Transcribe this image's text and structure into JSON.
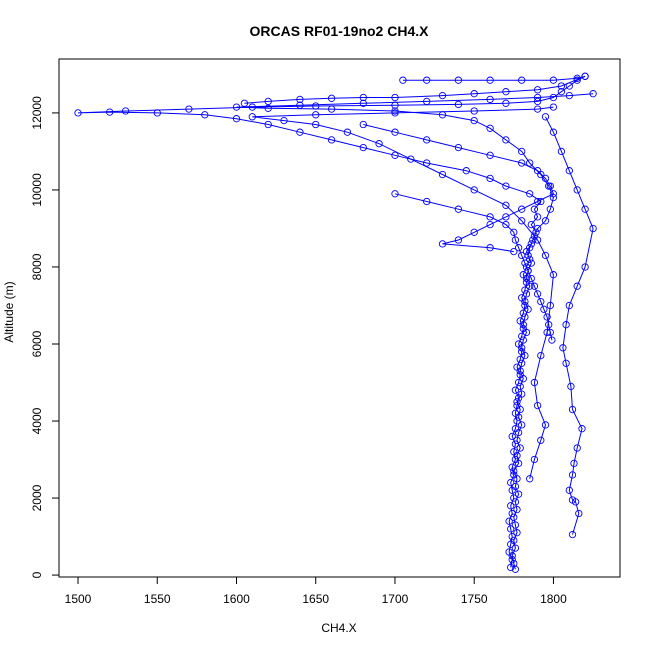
{
  "chart_data": {
    "type": "line",
    "title": "ORCAS RF01-19no2 CH4.X",
    "xlabel": "CH4.X",
    "ylabel": "Altitude (m)",
    "xlim": [
      1488,
      1842
    ],
    "ylim": [
      -50,
      13400
    ],
    "xticks": [
      1500,
      1550,
      1600,
      1650,
      1700,
      1750,
      1800
    ],
    "yticks": [
      0,
      2000,
      4000,
      6000,
      8000,
      10000,
      12000
    ],
    "grid": false,
    "legend": "none",
    "colors": {
      "series": "#0000ff",
      "axis": "#000000"
    },
    "markers": "open-circle",
    "series": [
      {
        "label": "",
        "points": [
          [
            1776,
            150
          ],
          [
            1775,
            300
          ],
          [
            1774,
            500
          ],
          [
            1776,
            700
          ],
          [
            1775,
            900
          ],
          [
            1777,
            1100
          ],
          [
            1776,
            1300
          ],
          [
            1775,
            1500
          ],
          [
            1777,
            1700
          ],
          [
            1776,
            1900
          ],
          [
            1778,
            2100
          ],
          [
            1776,
            2300
          ],
          [
            1777,
            2500
          ],
          [
            1775,
            2700
          ],
          [
            1778,
            2900
          ],
          [
            1777,
            3100
          ],
          [
            1779,
            3300
          ],
          [
            1777,
            3500
          ],
          [
            1778,
            3700
          ],
          [
            1780,
            3900
          ],
          [
            1778,
            4100
          ],
          [
            1779,
            4300
          ],
          [
            1777,
            4500
          ],
          [
            1780,
            4700
          ],
          [
            1779,
            4900
          ],
          [
            1781,
            5100
          ],
          [
            1779,
            5300
          ],
          [
            1780,
            5500
          ],
          [
            1782,
            5700
          ],
          [
            1780,
            5900
          ],
          [
            1781,
            6100
          ],
          [
            1783,
            6300
          ],
          [
            1781,
            6500
          ],
          [
            1782,
            6700
          ],
          [
            1784,
            6900
          ],
          [
            1782,
            7100
          ],
          [
            1783,
            7300
          ],
          [
            1785,
            7500
          ],
          [
            1783,
            7700
          ],
          [
            1784,
            7900
          ],
          [
            1786,
            8100
          ],
          [
            1784,
            8300
          ],
          [
            1785,
            8500
          ],
          [
            1787,
            8700
          ],
          [
            1789,
            8900
          ],
          [
            1786,
            9100
          ],
          [
            1790,
            9300
          ],
          [
            1788,
            9500
          ],
          [
            1792,
            9700
          ],
          [
            1785,
            9900
          ],
          [
            1770,
            10100
          ],
          [
            1760,
            10300
          ],
          [
            1745,
            10500
          ],
          [
            1720,
            10700
          ],
          [
            1700,
            10900
          ],
          [
            1680,
            11100
          ],
          [
            1660,
            11300
          ],
          [
            1640,
            11500
          ],
          [
            1620,
            11700
          ],
          [
            1600,
            11850
          ],
          [
            1580,
            11950
          ],
          [
            1550,
            12000
          ],
          [
            1520,
            12020
          ],
          [
            1500,
            12000
          ],
          [
            1530,
            12050
          ],
          [
            1570,
            12100
          ],
          [
            1610,
            12150
          ],
          [
            1650,
            12180
          ],
          [
            1700,
            12200
          ],
          [
            1740,
            12220
          ],
          [
            1770,
            12250
          ],
          [
            1790,
            12300
          ],
          [
            1800,
            12400
          ],
          [
            1805,
            12550
          ],
          [
            1810,
            12700
          ],
          [
            1815,
            12850
          ],
          [
            1820,
            12950
          ]
        ]
      },
      {
        "label": "",
        "points": [
          [
            1773,
            200
          ],
          [
            1774,
            400
          ],
          [
            1772,
            600
          ],
          [
            1773,
            800
          ],
          [
            1774,
            1000
          ],
          [
            1773,
            1200
          ],
          [
            1772,
            1400
          ],
          [
            1774,
            1600
          ],
          [
            1773,
            1800
          ],
          [
            1775,
            2000
          ],
          [
            1774,
            2200
          ],
          [
            1773,
            2400
          ],
          [
            1775,
            2600
          ],
          [
            1774,
            2800
          ],
          [
            1776,
            3000
          ],
          [
            1775,
            3200
          ],
          [
            1776,
            3400
          ],
          [
            1774,
            3600
          ],
          [
            1776,
            3800
          ],
          [
            1777,
            4000
          ],
          [
            1776,
            4200
          ],
          [
            1777,
            4400
          ],
          [
            1778,
            4600
          ],
          [
            1776,
            4800
          ],
          [
            1778,
            5000
          ],
          [
            1779,
            5200
          ],
          [
            1777,
            5400
          ],
          [
            1779,
            5600
          ],
          [
            1780,
            5800
          ],
          [
            1778,
            6000
          ],
          [
            1780,
            6200
          ],
          [
            1781,
            6400
          ],
          [
            1779,
            6600
          ],
          [
            1781,
            6800
          ],
          [
            1782,
            7000
          ],
          [
            1780,
            7200
          ],
          [
            1782,
            7400
          ],
          [
            1783,
            7600
          ],
          [
            1781,
            7800
          ],
          [
            1783,
            8000
          ],
          [
            1785,
            8200
          ],
          [
            1783,
            8400
          ],
          [
            1786,
            8600
          ],
          [
            1788,
            8800
          ],
          [
            1790,
            9000
          ],
          [
            1795,
            9200
          ],
          [
            1798,
            9500
          ],
          [
            1800,
            9800
          ],
          [
            1797,
            10100
          ],
          [
            1792,
            10400
          ],
          [
            1785,
            10700
          ],
          [
            1780,
            11000
          ],
          [
            1770,
            11300
          ],
          [
            1760,
            11600
          ],
          [
            1750,
            11800
          ],
          [
            1730,
            11950
          ],
          [
            1700,
            12050
          ],
          [
            1660,
            12100
          ],
          [
            1620,
            12120
          ],
          [
            1600,
            12150
          ],
          [
            1640,
            12200
          ],
          [
            1680,
            12250
          ],
          [
            1720,
            12300
          ],
          [
            1760,
            12350
          ],
          [
            1790,
            12400
          ],
          [
            1810,
            12450
          ],
          [
            1825,
            12500
          ]
        ]
      },
      {
        "label": "",
        "points": [
          [
            1812,
            1050
          ],
          [
            1816,
            1600
          ],
          [
            1814,
            1900
          ],
          [
            1812,
            1950
          ],
          [
            1810,
            2200
          ],
          [
            1812,
            2600
          ],
          [
            1813,
            2900
          ],
          [
            1815,
            3300
          ],
          [
            1818,
            3800
          ],
          [
            1812,
            4300
          ],
          [
            1811,
            4900
          ],
          [
            1808,
            5500
          ],
          [
            1806,
            5900
          ],
          [
            1808,
            6500
          ],
          [
            1810,
            7000
          ],
          [
            1815,
            7500
          ],
          [
            1820,
            8000
          ],
          [
            1825,
            9000
          ],
          [
            1820,
            9500
          ],
          [
            1815,
            10000
          ],
          [
            1810,
            10500
          ],
          [
            1805,
            11000
          ],
          [
            1800,
            11500
          ],
          [
            1795,
            11900
          ]
        ]
      },
      {
        "label": "",
        "points": [
          [
            1785,
            2500
          ],
          [
            1788,
            3000
          ],
          [
            1792,
            3500
          ],
          [
            1795,
            3900
          ],
          [
            1790,
            4400
          ],
          [
            1788,
            5000
          ],
          [
            1792,
            5700
          ],
          [
            1796,
            6300
          ],
          [
            1798,
            7000
          ],
          [
            1800,
            7800
          ],
          [
            1795,
            8300
          ],
          [
            1790,
            8700
          ],
          [
            1780,
            9200
          ],
          [
            1770,
            9600
          ],
          [
            1750,
            10000
          ],
          [
            1730,
            10400
          ],
          [
            1710,
            10800
          ],
          [
            1690,
            11200
          ],
          [
            1670,
            11500
          ],
          [
            1650,
            11700
          ],
          [
            1630,
            11800
          ],
          [
            1610,
            11900
          ],
          [
            1650,
            11950
          ],
          [
            1700,
            12000
          ],
          [
            1750,
            12050
          ],
          [
            1790,
            12100
          ],
          [
            1800,
            12150
          ]
        ]
      },
      {
        "label": "",
        "points": [
          [
            1705,
            12850
          ],
          [
            1720,
            12850
          ],
          [
            1740,
            12850
          ],
          [
            1760,
            12850
          ],
          [
            1780,
            12850
          ],
          [
            1800,
            12850
          ],
          [
            1815,
            12900
          ],
          [
            1820,
            12950
          ],
          [
            1805,
            12700
          ],
          [
            1790,
            12600
          ],
          [
            1770,
            12550
          ],
          [
            1750,
            12500
          ],
          [
            1730,
            12450
          ],
          [
            1700,
            12400
          ],
          [
            1680,
            12400
          ],
          [
            1660,
            12380
          ],
          [
            1640,
            12350
          ],
          [
            1620,
            12300
          ],
          [
            1605,
            12250
          ]
        ]
      },
      {
        "label": "",
        "points": [
          [
            1700,
            9900
          ],
          [
            1720,
            9700
          ],
          [
            1740,
            9500
          ],
          [
            1760,
            9300
          ],
          [
            1770,
            9100
          ],
          [
            1775,
            8900
          ],
          [
            1776,
            8700
          ],
          [
            1778,
            8500
          ],
          [
            1780,
            8300
          ],
          [
            1782,
            8100
          ],
          [
            1784,
            7900
          ],
          [
            1786,
            7700
          ],
          [
            1788,
            7500
          ],
          [
            1790,
            7300
          ],
          [
            1792,
            7100
          ],
          [
            1794,
            6900
          ],
          [
            1796,
            6700
          ],
          [
            1797,
            6500
          ],
          [
            1798,
            6300
          ],
          [
            1799,
            6100
          ]
        ]
      },
      {
        "label": "",
        "points": [
          [
            1680,
            11700
          ],
          [
            1700,
            11500
          ],
          [
            1720,
            11300
          ],
          [
            1740,
            11100
          ],
          [
            1760,
            10900
          ],
          [
            1780,
            10700
          ],
          [
            1790,
            10500
          ],
          [
            1795,
            10300
          ],
          [
            1798,
            10100
          ],
          [
            1800,
            9900
          ],
          [
            1790,
            9700
          ],
          [
            1780,
            9500
          ],
          [
            1770,
            9300
          ],
          [
            1760,
            9100
          ],
          [
            1750,
            8900
          ],
          [
            1740,
            8700
          ],
          [
            1730,
            8600
          ],
          [
            1760,
            8500
          ],
          [
            1775,
            8400
          ]
        ]
      }
    ]
  }
}
